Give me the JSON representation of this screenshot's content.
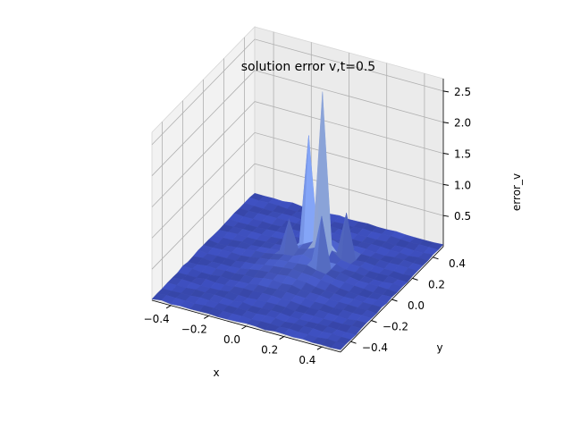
{
  "chart_data": {
    "type": "surface",
    "title": "solution error v,t=0.5",
    "xlabel": "x",
    "ylabel": "y",
    "zlabel": "error_v",
    "xlim": [
      -0.5,
      0.5
    ],
    "ylim": [
      -0.5,
      0.5
    ],
    "zlim": [
      0.0,
      2.7
    ],
    "xticks": [
      "−0.4",
      "−0.2",
      "0.0",
      "0.2",
      "0.4"
    ],
    "yticks": [
      "−0.4",
      "−0.2",
      "0.0",
      "0.2",
      "0.4"
    ],
    "zticks": [
      "0.5",
      "1.0",
      "1.5",
      "2.0",
      "2.5"
    ],
    "xtick_values": [
      -0.4,
      -0.2,
      0.0,
      0.2,
      0.4
    ],
    "ytick_values": [
      -0.4,
      -0.2,
      0.0,
      0.2,
      0.4
    ],
    "ztick_values": [
      0.5,
      1.0,
      1.5,
      2.0,
      2.5
    ],
    "colormap": "coolwarm",
    "grid": true,
    "surface": {
      "grid_size": 21,
      "baseline": 0.02,
      "peaks": [
        {
          "x": 0.05,
          "y": 0.15,
          "height": 2.55,
          "note": "main peak"
        },
        {
          "x": -0.05,
          "y": 0.2,
          "height": 1.75,
          "note": "secondary peak"
        },
        {
          "x": 0.1,
          "y": 0.05,
          "height": 0.85
        },
        {
          "x": 0.15,
          "y": 0.2,
          "height": 0.7
        },
        {
          "x": -0.1,
          "y": 0.1,
          "height": 0.6
        }
      ]
    }
  }
}
